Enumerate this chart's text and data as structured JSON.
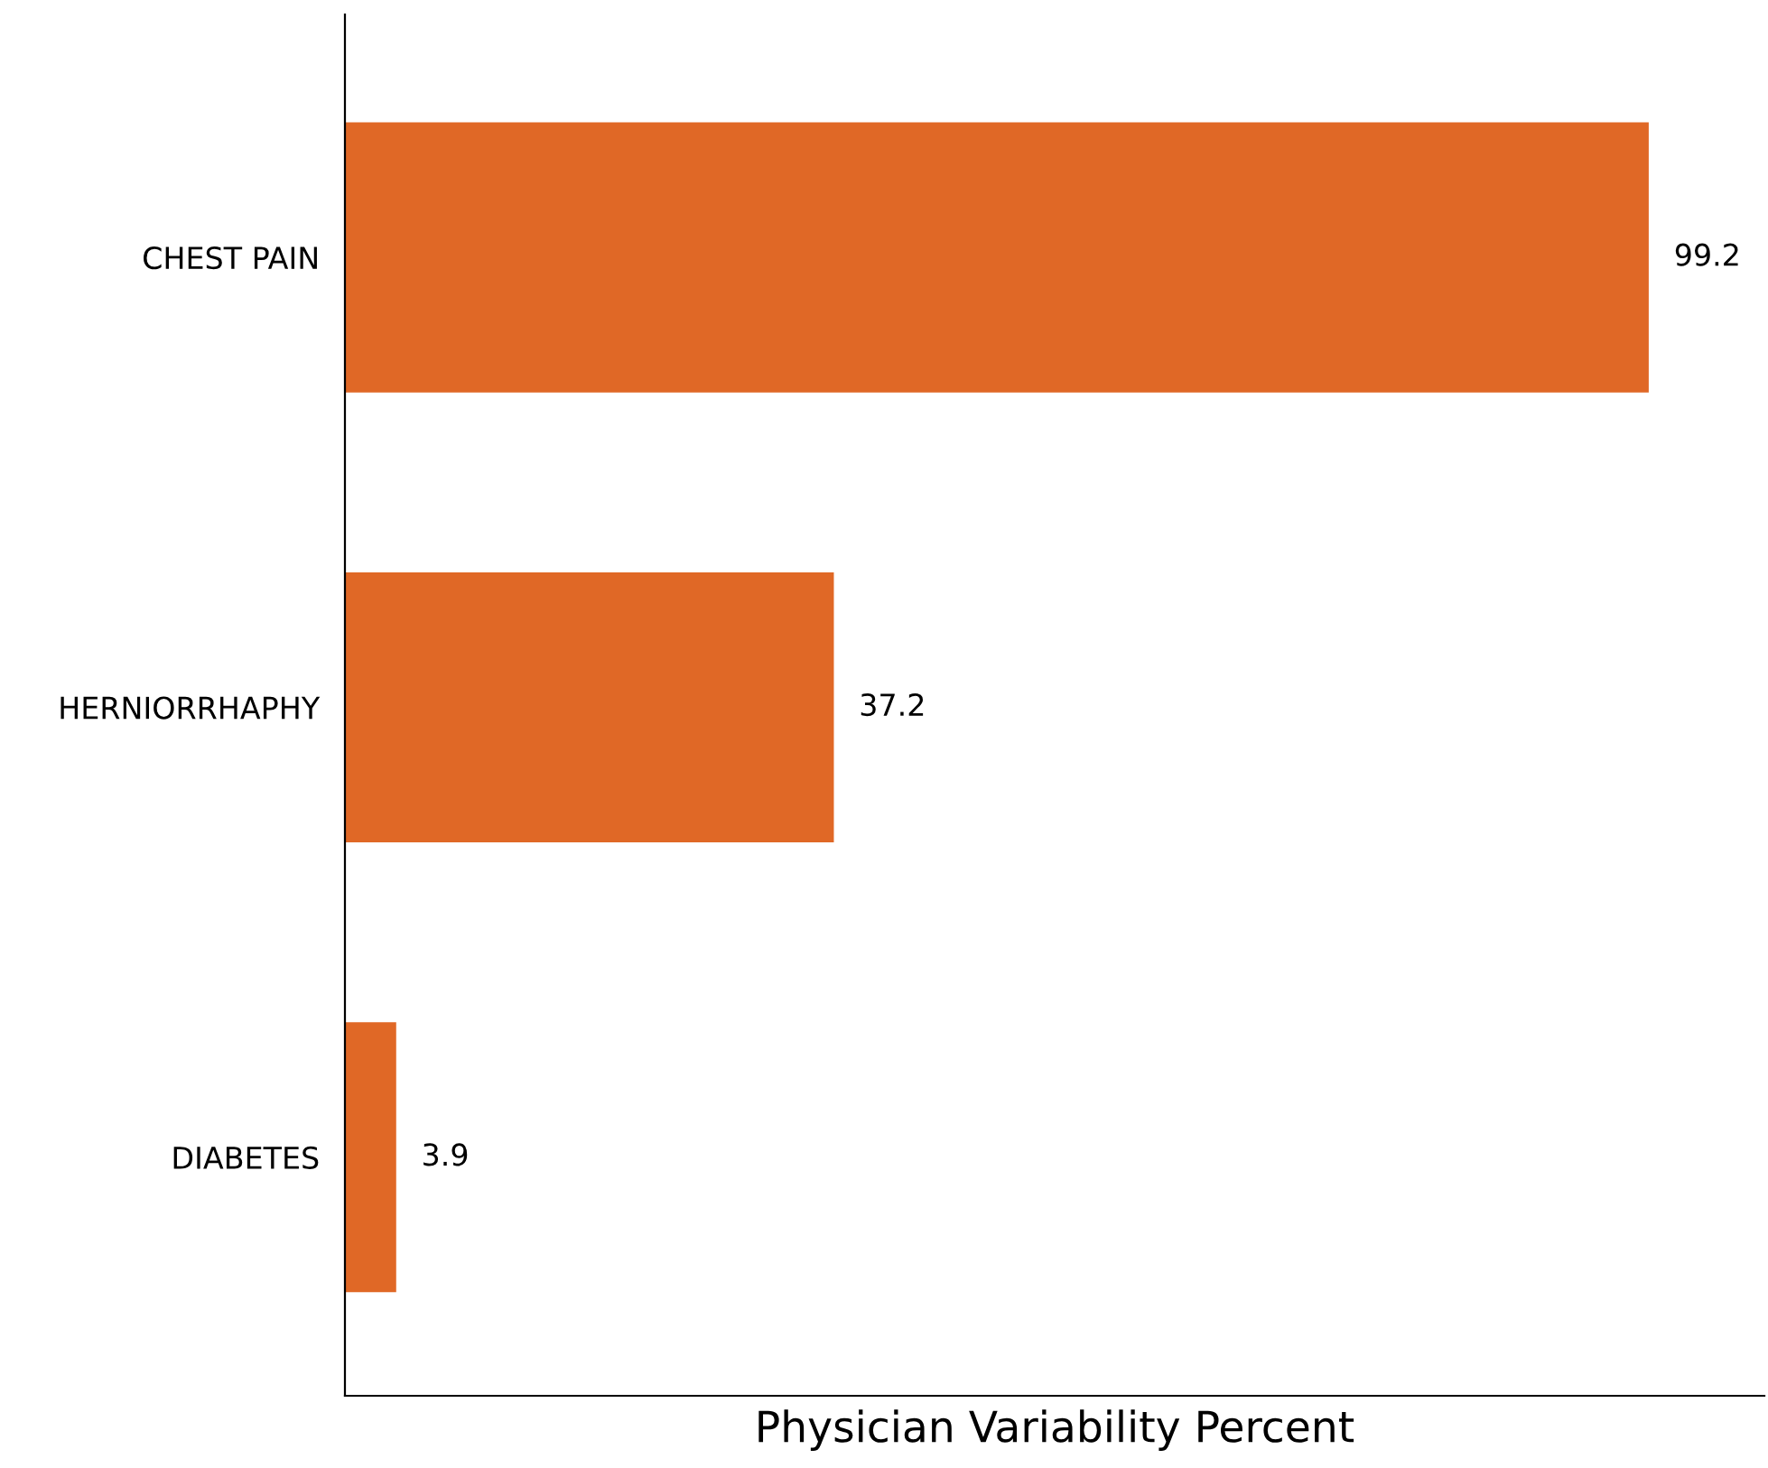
{
  "chart_data": {
    "type": "bar",
    "orientation": "horizontal",
    "xlabel": "Physician Variability Percent",
    "categories": [
      "CHEST PAIN",
      "HERNIORRHAPHY",
      "DIABETES"
    ],
    "values": [
      99.2,
      37.2,
      3.9
    ],
    "color": "#e06826",
    "xlim": [
      0,
      108
    ],
    "data_labels": true,
    "tick_labels": "y",
    "grid": false,
    "legend": false
  }
}
